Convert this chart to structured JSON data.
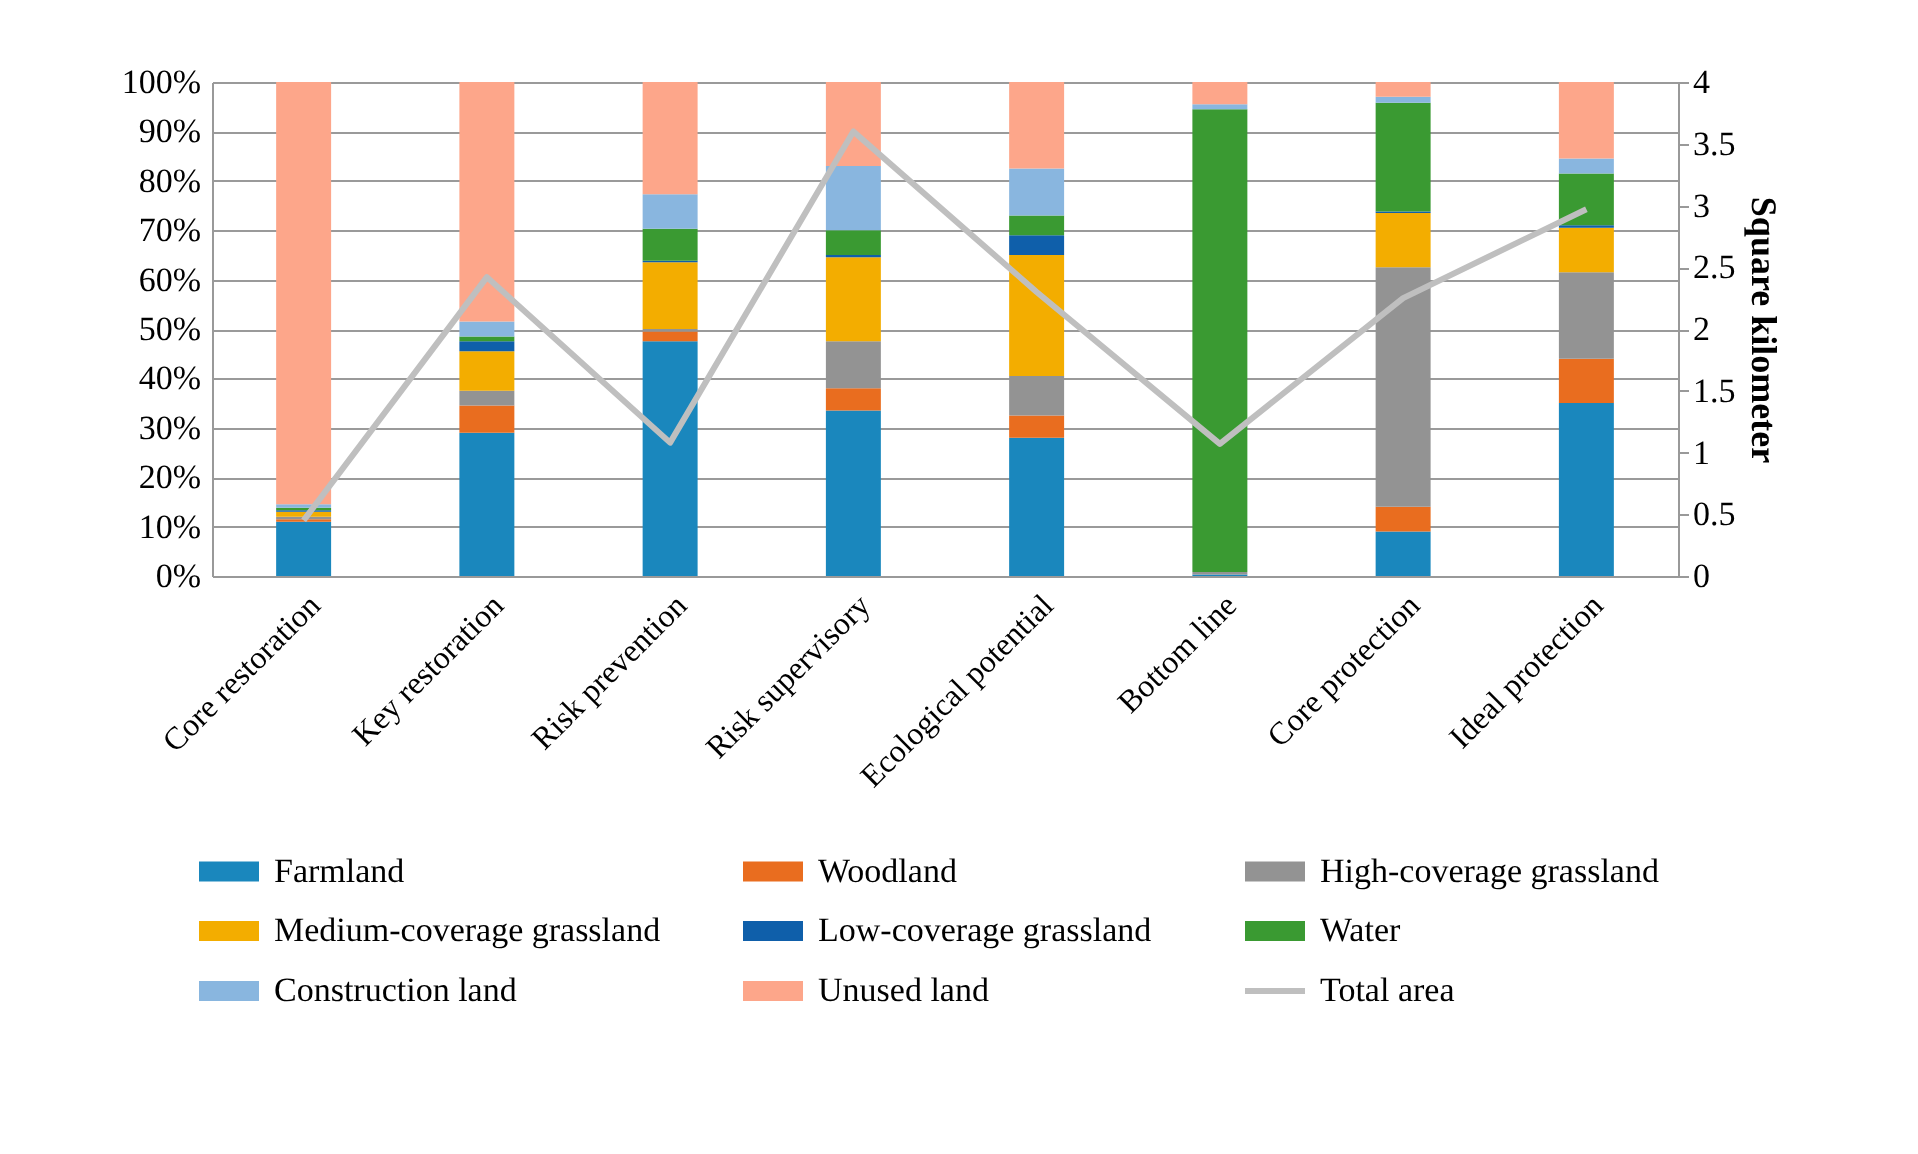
{
  "chart_data": {
    "type": "bar",
    "stacked": true,
    "y2label": "Square kilometer",
    "categories": [
      "Core restoration",
      "Key restoration",
      "Risk prevention",
      "Risk supervisory",
      "Ecological potential",
      "Bottom line",
      "Core protection",
      "Ideal protection"
    ],
    "series": [
      {
        "name": "Farmland",
        "color": "#1a87bd",
        "values": [
          11,
          29,
          47.5,
          33.5,
          28,
          0.3,
          9,
          35
        ]
      },
      {
        "name": "Woodland",
        "color": "#e96d1f",
        "values": [
          0.5,
          5.5,
          2,
          4.5,
          4.5,
          0,
          5,
          9
        ]
      },
      {
        "name": "High-coverage grassland",
        "color": "#939393",
        "values": [
          0.5,
          3,
          0.5,
          9.5,
          8,
          0.5,
          48.5,
          17.5
        ]
      },
      {
        "name": "Medium-coverage grassland",
        "color": "#f3ad00",
        "values": [
          1,
          8,
          13.5,
          17,
          24.5,
          0,
          11,
          9
        ]
      },
      {
        "name": "Low-coverage grassland",
        "color": "#0f5faa",
        "values": [
          0.3,
          2,
          0.3,
          0.5,
          4,
          0,
          0.3,
          0.5
        ]
      },
      {
        "name": "Water",
        "color": "#3a9a32",
        "values": [
          0.5,
          1,
          6.5,
          5,
          4,
          93.7,
          22,
          10.5
        ]
      },
      {
        "name": "Construction land",
        "color": "#89b6df",
        "values": [
          0.7,
          3,
          7,
          13,
          9.5,
          1,
          1.2,
          3
        ]
      },
      {
        "name": "Unused land",
        "color": "#fda68a",
        "values": [
          85.5,
          48.5,
          22.7,
          17,
          17.5,
          4.5,
          3,
          15.5
        ]
      },
      {
        "name": "Total area",
        "type": "line",
        "axis": "y2",
        "color": "#bfbfbf",
        "values": [
          0.45,
          2.42,
          1.08,
          3.6,
          2.3,
          1.07,
          2.25,
          2.97
        ]
      }
    ],
    "ylim": [
      0,
      100
    ],
    "yticks": [
      {
        "value": 0,
        "label": "0%"
      },
      {
        "value": 10,
        "label": "10%"
      },
      {
        "value": 20,
        "label": "20%"
      },
      {
        "value": 30,
        "label": "30%"
      },
      {
        "value": 40,
        "label": "40%"
      },
      {
        "value": 50,
        "label": "50%"
      },
      {
        "value": 60,
        "label": "60%"
      },
      {
        "value": 70,
        "label": "70%"
      },
      {
        "value": 80,
        "label": "80%"
      },
      {
        "value": 90,
        "label": "90%"
      },
      {
        "value": 100,
        "label": "100%"
      }
    ],
    "y2lim": [
      0,
      4
    ],
    "y2ticks": [
      0,
      0.5,
      1,
      1.5,
      2,
      2.5,
      3,
      3.5,
      4
    ],
    "grid": "y",
    "legend": "bottom"
  }
}
